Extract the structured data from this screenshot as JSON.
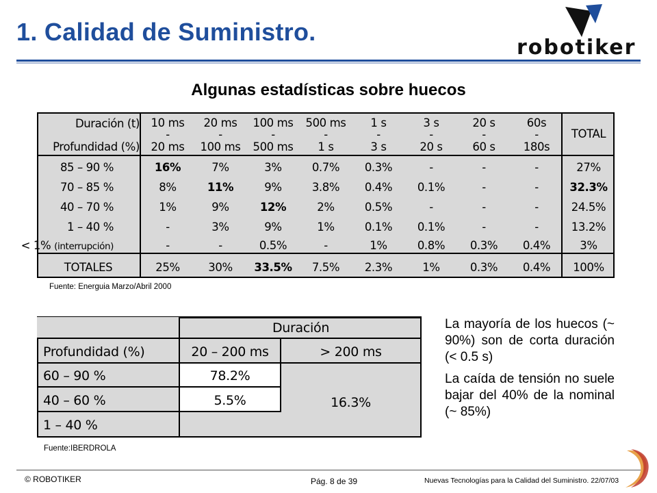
{
  "title": "1. Calidad de Suministro.",
  "logo": {
    "text": "robotiker",
    "icon": "robotiker-logo-icon",
    "colors": {
      "mark": "#111111",
      "accent": "#1f4e9c"
    }
  },
  "subtitle": "Algunas estadísticas sobre huecos",
  "table1": {
    "header_duration_label": "Duración (t)",
    "header_depth_label": "Profundidad (%)",
    "columns": [
      {
        "from": "10 ms",
        "sep": "-",
        "to": "20 ms"
      },
      {
        "from": "20 ms",
        "sep": "-",
        "to": "100 ms"
      },
      {
        "from": "100 ms",
        "sep": "-",
        "to": "500 ms"
      },
      {
        "from": "500 ms",
        "sep": "-",
        "to": "1 s"
      },
      {
        "from": "1 s",
        "sep": "-",
        "to": "3 s"
      },
      {
        "from": "3 s",
        "sep": "-",
        "to": "20 s"
      },
      {
        "from": "20 s",
        "sep": "-",
        "to": "60 s"
      },
      {
        "from": "60s",
        "sep": "-",
        "to": "180s"
      }
    ],
    "total_header": "TOTAL",
    "rows": [
      {
        "label": "85 – 90 %",
        "label_note": "",
        "values": [
          "16%",
          "7%",
          "3%",
          "0.7%",
          "0.3%",
          "-",
          "-",
          "-"
        ],
        "total": "27%"
      },
      {
        "label": "70 – 85 %",
        "label_note": "",
        "values": [
          "8%",
          "11%",
          "9%",
          "3.8%",
          "0.4%",
          "0.1%",
          "-",
          "-"
        ],
        "total": "32.3%"
      },
      {
        "label": "40 – 70 %",
        "label_note": "",
        "values": [
          "1%",
          "9%",
          "12%",
          "2%",
          "0.5%",
          "-",
          "-",
          "-"
        ],
        "total": "24.5%"
      },
      {
        "label": "1 – 40 %",
        "label_note": "",
        "values": [
          "-",
          "3%",
          "9%",
          "1%",
          "0.1%",
          "0.1%",
          "-",
          "-"
        ],
        "total": "13.2%"
      },
      {
        "label": "< 1%",
        "label_note": "(interrupción)",
        "values": [
          "-",
          "-",
          "0.5%",
          "-",
          "1%",
          "0.8%",
          "0.3%",
          "0.4%"
        ],
        "total": "3%"
      }
    ],
    "totals_label": "TOTALES",
    "totals": [
      "25%",
      "30%",
      "33.5%",
      "7.5%",
      "2.3%",
      "1%",
      "0.3%",
      "0.4%"
    ],
    "grand_total": "100%"
  },
  "source1": "Fuente: Energuia Marzo/Abril 2000",
  "table2": {
    "duration_header": "Duración",
    "depth_header": "Profundidad (%)",
    "col1": "20 – 200 ms",
    "col2": "> 200 ms",
    "rows": [
      {
        "label": "60 – 90 %",
        "value": "78.2%"
      },
      {
        "label": "40 – 60 %",
        "value": "5.5%"
      },
      {
        "label": "1 – 40 %",
        "value": ""
      }
    ],
    "merged_value": "16.3%"
  },
  "source2": "Fuente:IBERDROLA",
  "notes": [
    "La mayoría de los huecos (~ 90%) son de corta duración (< 0.5 s)",
    "La caída de tensión no suele bajar del 40% de la nominal (~ 85%)"
  ],
  "footer": {
    "left": "© ROBOTIKER",
    "center": "Pág. 8 de 39",
    "right": "Nuevas Tecnologías para la Calidad del Suministro. 22/07/03"
  }
}
